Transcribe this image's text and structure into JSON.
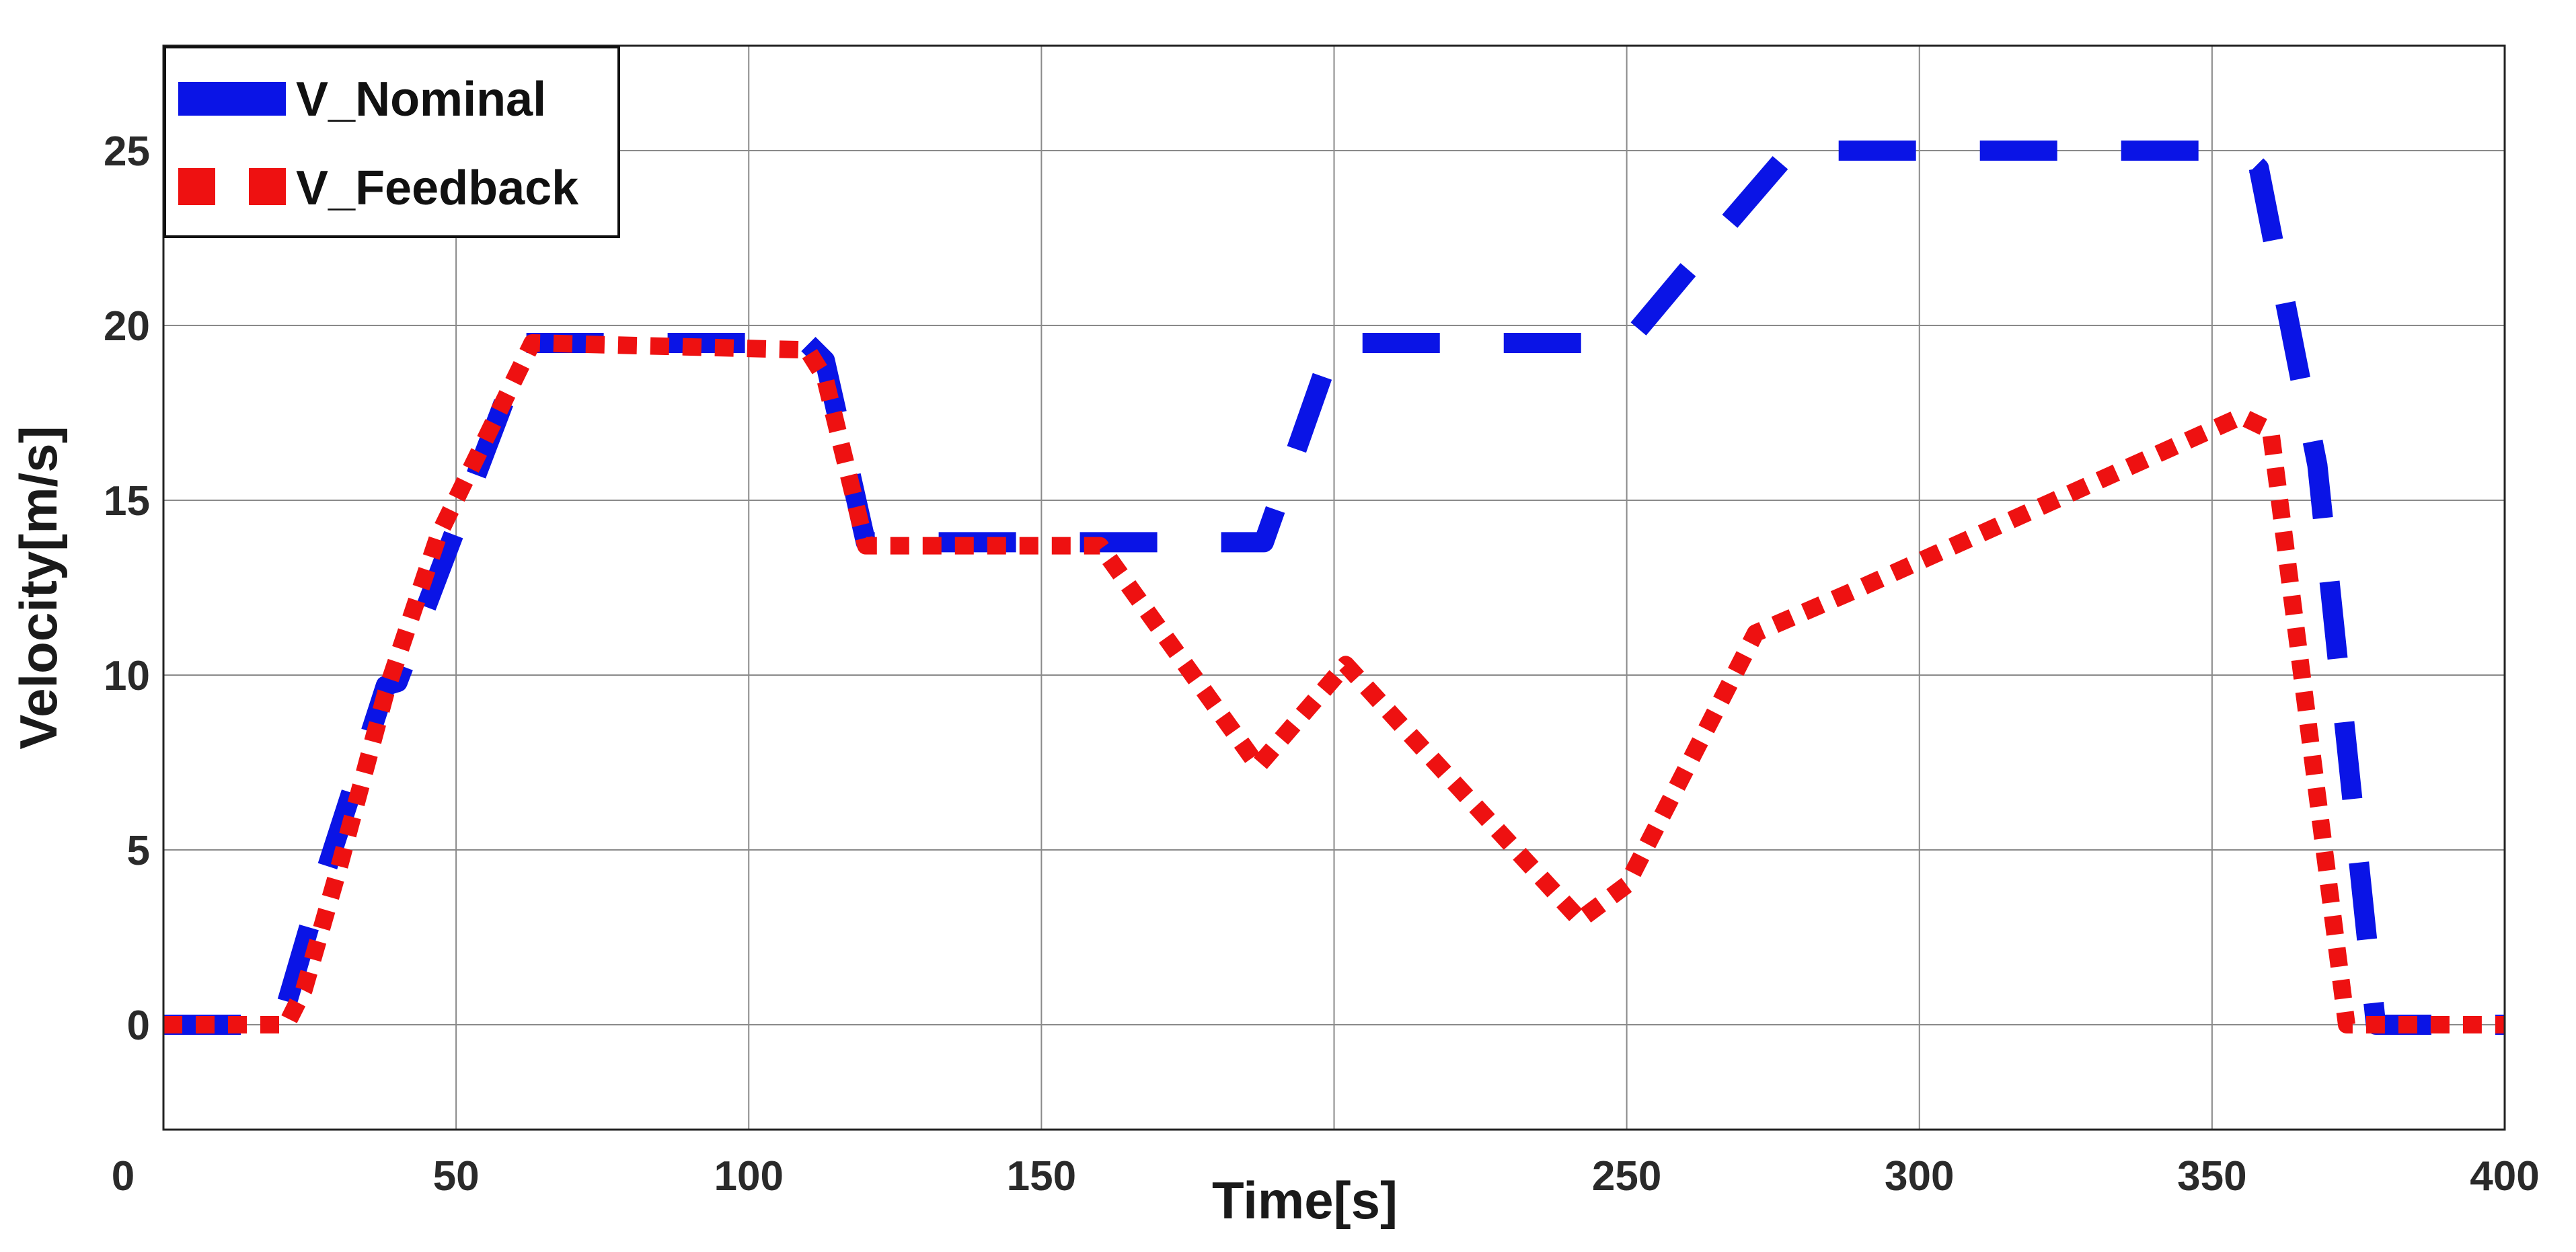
{
  "chart_data": {
    "type": "line",
    "xlabel": "Time[s]",
    "ylabel": "Velocity[m/s]",
    "xlim": [
      0,
      400
    ],
    "ylim": [
      -3,
      28
    ],
    "xticks": [
      0,
      50,
      100,
      150,
      200,
      250,
      300,
      350,
      400
    ],
    "xtick_labels": [
      "0",
      "50",
      "100",
      "150",
      "",
      "250",
      "300",
      "350",
      "400"
    ],
    "yticks": [
      0,
      5,
      10,
      15,
      20,
      25
    ],
    "ytick_labels": [
      "0",
      "5",
      "10",
      "15",
      "20",
      "25"
    ],
    "grid": true,
    "legend": "top-left",
    "series": [
      {
        "name": "V_Nominal",
        "color": "#0a14e6",
        "style": "dashed",
        "points": [
          [
            0,
            0
          ],
          [
            20,
            0
          ],
          [
            27,
            4
          ],
          [
            38,
            9.7
          ],
          [
            40,
            9.8
          ],
          [
            62,
            19.5
          ],
          [
            110,
            19.5
          ],
          [
            113,
            19
          ],
          [
            120,
            13.8
          ],
          [
            188,
            13.8
          ],
          [
            200,
            19.5
          ],
          [
            250,
            19.5
          ],
          [
            260,
            21.5
          ],
          [
            278,
            25
          ],
          [
            355,
            25
          ],
          [
            358,
            24.5
          ],
          [
            368,
            16
          ],
          [
            378,
            0
          ],
          [
            400,
            0
          ]
        ]
      },
      {
        "name": "V_Feedback",
        "color": "#ee1111",
        "style": "dotted",
        "points": [
          [
            0,
            0
          ],
          [
            21,
            0
          ],
          [
            24,
            1
          ],
          [
            30,
            4.5
          ],
          [
            38,
            9.5
          ],
          [
            47,
            14
          ],
          [
            63,
            19.5
          ],
          [
            110,
            19.3
          ],
          [
            113,
            18.5
          ],
          [
            120,
            13.7
          ],
          [
            160,
            13.7
          ],
          [
            187,
            7.4
          ],
          [
            202,
            10.3
          ],
          [
            242,
            3
          ],
          [
            250,
            4
          ],
          [
            272,
            11.2
          ],
          [
            290,
            12.5
          ],
          [
            355,
            17.4
          ],
          [
            360,
            17
          ],
          [
            373,
            0
          ],
          [
            400,
            0
          ]
        ]
      }
    ]
  }
}
